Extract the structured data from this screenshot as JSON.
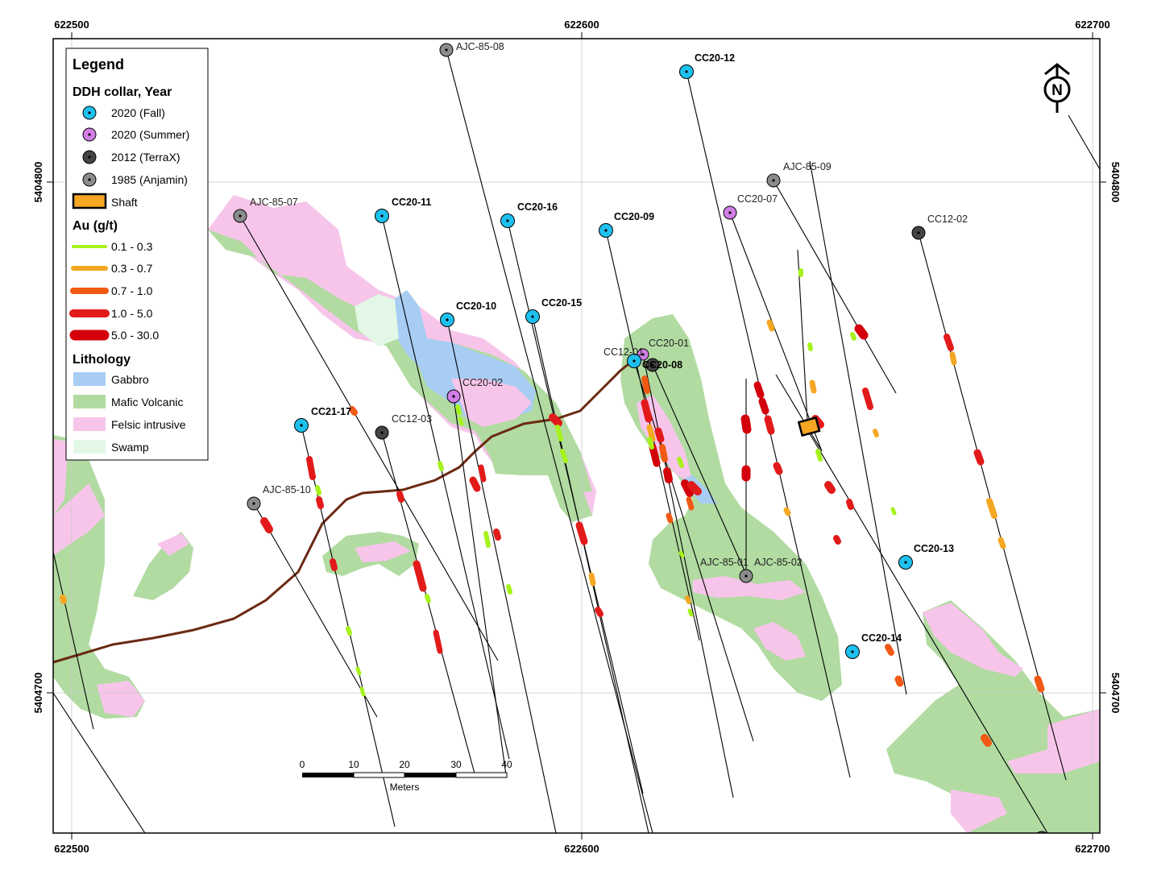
{
  "map": {
    "grid_easting": [
      "622500",
      "622600",
      "622700"
    ],
    "grid_northing": [
      "5404800",
      "5404700"
    ]
  },
  "legend": {
    "title": "Legend",
    "collar_header": "DDH collar, Year",
    "collars": [
      {
        "label": "2020 (Fall)",
        "color": "#1ec0ee"
      },
      {
        "label": "2020 (Summer)",
        "color": "#d27ee6"
      },
      {
        "label": "2012 (TerraX)",
        "color": "#444444"
      },
      {
        "label": "1985 (Anjamin)",
        "color": "#8c8c8c"
      }
    ],
    "shaft_label": "Shaft",
    "shaft_color": "#f5a623",
    "au_header": "Au (g/t)",
    "au_classes": [
      {
        "label": "0.1 - 0.3",
        "color": "#a6f21c"
      },
      {
        "label": "0.3 - 0.7",
        "color": "#f5a623"
      },
      {
        "label": "0.7 - 1.0",
        "color": "#f05a14"
      },
      {
        "label": "1.0 - 5.0",
        "color": "#e31a1a"
      },
      {
        "label": "5.0 - 30.0",
        "color": "#d4000b"
      }
    ],
    "lith_header": "Lithology",
    "lithology": [
      {
        "label": "Gabbro",
        "color": "#a7cdf3"
      },
      {
        "label": "Mafic Volcanic",
        "color": "#b1dba1"
      },
      {
        "label": "Felsic intrusive",
        "color": "#f7c5ea"
      },
      {
        "label": "Swamp",
        "color": "#e3f7e6"
      }
    ]
  },
  "holes": [
    "AJC-85-08",
    "CC20-12",
    "AJC-85-09",
    "CC20-07",
    "AJC-85-07",
    "CC20-11",
    "CC20-16",
    "CC20-09",
    "CC12-02",
    "CC20-10",
    "CC20-15",
    "CC12-01",
    "CC20-01",
    "CC20-08",
    "CC20-02",
    "CC21-17",
    "CC12-03",
    "AJC-85-10",
    "AJC-85-01",
    "AJC-85-02",
    "CC20-13",
    "CC20-14"
  ],
  "scale_bar": {
    "ticks": [
      "0",
      "10",
      "20",
      "30",
      "40"
    ],
    "unit": "Meters"
  },
  "north_arrow": "N"
}
